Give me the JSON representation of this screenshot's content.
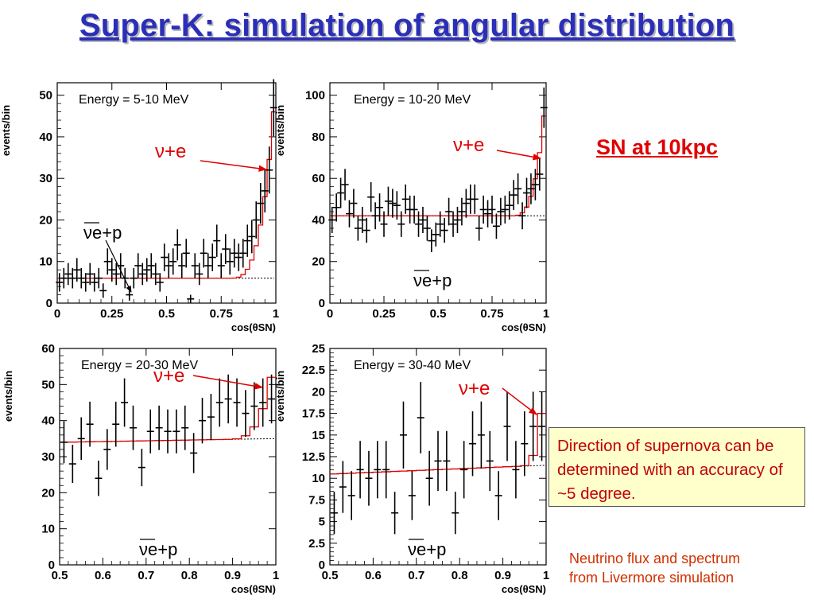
{
  "title": "Super-K: simulation of angular distribution",
  "sn_label": "SN at 10kpc",
  "note": "Direction of supernova can be determined with an accuracy of ~5 degree.",
  "footnote_line1": "Neutrino flux and spectrum",
  "footnote_line2": "from Livermore simulation",
  "colors": {
    "title": "#2b2fb8",
    "accent": "#e00000",
    "data": "#000000",
    "fit": "#e00000"
  },
  "chart_data": [
    {
      "type": "scatter",
      "title": "Energy = 5-10 MeV",
      "xlabel": "cos(θSN)",
      "ylabel": "events/bin",
      "xlim": [
        0,
        1
      ],
      "ylim": [
        0,
        53
      ],
      "xticks": [
        0,
        0.25,
        0.5,
        0.75,
        1
      ],
      "xticklabels": [
        "0",
        "0.25",
        "0.5",
        "0.75",
        "1"
      ],
      "yticks": [
        0,
        10,
        20,
        30,
        40,
        50
      ],
      "yticklabels": [
        "0",
        "10",
        "20",
        "30",
        "40",
        "50"
      ],
      "annotations": [
        "ν+e",
        "νe+p"
      ],
      "flat_level": 6,
      "spike_start": 0.8,
      "peak_value": 46,
      "points": [
        [
          0.01,
          5
        ],
        [
          0.03,
          6
        ],
        [
          0.05,
          7
        ],
        [
          0.07,
          6
        ],
        [
          0.09,
          8
        ],
        [
          0.11,
          6
        ],
        [
          0.13,
          5
        ],
        [
          0.15,
          7
        ],
        [
          0.17,
          5
        ],
        [
          0.19,
          6
        ],
        [
          0.21,
          3
        ],
        [
          0.23,
          10
        ],
        [
          0.25,
          8
        ],
        [
          0.27,
          7
        ],
        [
          0.29,
          9
        ],
        [
          0.31,
          6
        ],
        [
          0.33,
          2
        ],
        [
          0.35,
          6
        ],
        [
          0.37,
          9
        ],
        [
          0.39,
          7
        ],
        [
          0.41,
          8
        ],
        [
          0.43,
          9
        ],
        [
          0.45,
          7
        ],
        [
          0.47,
          5
        ],
        [
          0.49,
          11
        ],
        [
          0.51,
          9
        ],
        [
          0.53,
          10
        ],
        [
          0.55,
          14
        ],
        [
          0.57,
          9
        ],
        [
          0.59,
          12
        ],
        [
          0.61,
          1
        ],
        [
          0.63,
          9
        ],
        [
          0.65,
          7
        ],
        [
          0.67,
          12
        ],
        [
          0.69,
          9
        ],
        [
          0.71,
          11
        ],
        [
          0.73,
          15
        ],
        [
          0.75,
          9
        ],
        [
          0.77,
          13
        ],
        [
          0.79,
          10
        ],
        [
          0.81,
          12
        ],
        [
          0.83,
          11
        ],
        [
          0.85,
          12
        ],
        [
          0.87,
          15
        ],
        [
          0.89,
          16
        ],
        [
          0.91,
          20
        ],
        [
          0.93,
          24
        ],
        [
          0.95,
          27
        ],
        [
          0.97,
          32
        ],
        [
          0.99,
          47
        ]
      ]
    },
    {
      "type": "scatter",
      "title": "Energy = 10-20 MeV",
      "xlabel": "cos(θSN)",
      "ylabel": "events/bin",
      "xlim": [
        0,
        1
      ],
      "ylim": [
        0,
        106
      ],
      "xticks": [
        0,
        0.25,
        0.5,
        0.75,
        1
      ],
      "xticklabels": [
        "0",
        "0.25",
        "0.5",
        "0.75",
        "1"
      ],
      "yticks": [
        0,
        20,
        40,
        60,
        80,
        100
      ],
      "yticklabels": [
        "0",
        "20",
        "40",
        "60",
        "80",
        "100"
      ],
      "annotations": [
        "ν+e",
        "νe+p"
      ],
      "flat_level": 42,
      "spike_start": 0.85,
      "peak_value": 90,
      "points": [
        [
          0.01,
          40
        ],
        [
          0.03,
          46
        ],
        [
          0.05,
          53
        ],
        [
          0.07,
          57
        ],
        [
          0.09,
          43
        ],
        [
          0.11,
          48
        ],
        [
          0.13,
          36
        ],
        [
          0.15,
          40
        ],
        [
          0.17,
          35
        ],
        [
          0.19,
          51
        ],
        [
          0.21,
          42
        ],
        [
          0.23,
          46
        ],
        [
          0.25,
          38
        ],
        [
          0.27,
          49
        ],
        [
          0.29,
          48
        ],
        [
          0.31,
          47
        ],
        [
          0.33,
          38
        ],
        [
          0.35,
          50
        ],
        [
          0.37,
          45
        ],
        [
          0.39,
          45
        ],
        [
          0.41,
          38
        ],
        [
          0.43,
          40
        ],
        [
          0.45,
          36
        ],
        [
          0.47,
          30
        ],
        [
          0.49,
          33
        ],
        [
          0.51,
          38
        ],
        [
          0.53,
          35
        ],
        [
          0.55,
          44
        ],
        [
          0.57,
          38
        ],
        [
          0.59,
          40
        ],
        [
          0.61,
          44
        ],
        [
          0.63,
          48
        ],
        [
          0.65,
          50
        ],
        [
          0.67,
          50
        ],
        [
          0.69,
          36
        ],
        [
          0.71,
          45
        ],
        [
          0.73,
          43
        ],
        [
          0.75,
          45
        ],
        [
          0.77,
          37
        ],
        [
          0.79,
          44
        ],
        [
          0.81,
          45
        ],
        [
          0.83,
          47
        ],
        [
          0.85,
          52
        ],
        [
          0.87,
          55
        ],
        [
          0.89,
          42
        ],
        [
          0.91,
          53
        ],
        [
          0.93,
          55
        ],
        [
          0.95,
          57
        ],
        [
          0.97,
          62
        ],
        [
          0.99,
          94
        ]
      ]
    },
    {
      "type": "scatter",
      "title": "Energy = 20-30 MeV",
      "xlabel": "cos(θSN)",
      "ylabel": "events/bin",
      "xlim": [
        0.5,
        1
      ],
      "ylim": [
        0,
        60
      ],
      "xticks": [
        0.5,
        0.6,
        0.7,
        0.8,
        0.9,
        1
      ],
      "xticklabels": [
        "0.5",
        "0.6",
        "0.7",
        "0.8",
        "0.9",
        "1"
      ],
      "yticks": [
        0,
        10,
        20,
        30,
        40,
        50,
        60
      ],
      "yticklabels": [
        "0",
        "10",
        "20",
        "30",
        "40",
        "50",
        "60"
      ],
      "annotations": [
        "ν+e",
        "νe+p"
      ],
      "flat_start": 34,
      "flat_end": 35,
      "spike_start": 0.9,
      "peak_value": 52,
      "points": [
        [
          0.51,
          34
        ],
        [
          0.53,
          28
        ],
        [
          0.55,
          35
        ],
        [
          0.57,
          39
        ],
        [
          0.59,
          24
        ],
        [
          0.61,
          32
        ],
        [
          0.63,
          39
        ],
        [
          0.65,
          45
        ],
        [
          0.67,
          38
        ],
        [
          0.69,
          27
        ],
        [
          0.71,
          37
        ],
        [
          0.73,
          38
        ],
        [
          0.75,
          37
        ],
        [
          0.77,
          37
        ],
        [
          0.79,
          38
        ],
        [
          0.81,
          31
        ],
        [
          0.83,
          40
        ],
        [
          0.85,
          41
        ],
        [
          0.87,
          45
        ],
        [
          0.89,
          46
        ],
        [
          0.91,
          45
        ],
        [
          0.93,
          42
        ],
        [
          0.95,
          44
        ],
        [
          0.97,
          45
        ],
        [
          0.99,
          46
        ]
      ]
    },
    {
      "type": "scatter",
      "title": "Energy = 30-40 MeV",
      "xlabel": "cos(θSN)",
      "ylabel": "events/bin",
      "xlim": [
        0.5,
        1
      ],
      "ylim": [
        0,
        25
      ],
      "xticks": [
        0.5,
        0.6,
        0.7,
        0.8,
        0.9,
        1
      ],
      "xticklabels": [
        "0.5",
        "0.6",
        "0.7",
        "0.8",
        "0.9",
        "1"
      ],
      "yticks": [
        0,
        2.5,
        5,
        7.5,
        10,
        12.5,
        15,
        17.5,
        20,
        22.5,
        25
      ],
      "yticklabels": [
        "0",
        "2.5",
        "5",
        "7.5",
        "10",
        "12.5",
        "15",
        "17.5",
        "20",
        "22.5",
        "25"
      ],
      "annotations": [
        "ν+e",
        "νe+p"
      ],
      "flat_start": 10.5,
      "flat_end": 11.5,
      "spike_start": 0.95,
      "peak_value": 17.5,
      "points": [
        [
          0.51,
          6
        ],
        [
          0.53,
          9
        ],
        [
          0.55,
          8
        ],
        [
          0.57,
          11
        ],
        [
          0.59,
          10
        ],
        [
          0.61,
          11
        ],
        [
          0.63,
          11
        ],
        [
          0.65,
          6
        ],
        [
          0.67,
          15
        ],
        [
          0.69,
          8
        ],
        [
          0.71,
          17
        ],
        [
          0.73,
          10
        ],
        [
          0.75,
          12
        ],
        [
          0.77,
          12
        ],
        [
          0.79,
          6
        ],
        [
          0.81,
          11
        ],
        [
          0.83,
          14
        ],
        [
          0.85,
          15
        ],
        [
          0.87,
          12
        ],
        [
          0.89,
          8
        ],
        [
          0.91,
          16
        ],
        [
          0.93,
          11
        ],
        [
          0.95,
          14
        ],
        [
          0.97,
          16
        ],
        [
          0.99,
          16
        ]
      ]
    }
  ]
}
